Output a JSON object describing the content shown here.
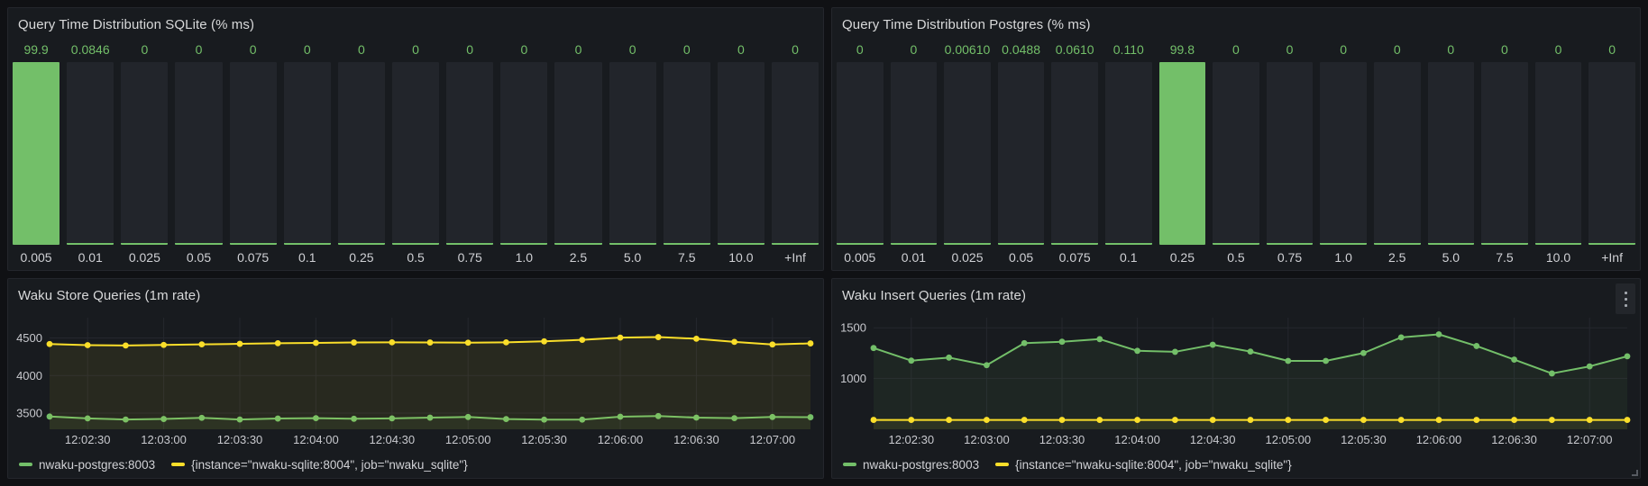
{
  "app": {
    "name": "grafana-dashboard"
  },
  "colors": {
    "green": "#73BF69",
    "yellow": "#FADE2A",
    "panel_bg": "#181B1F",
    "page_bg": "#101114",
    "grid": "#25272E",
    "axis_text": "#C8C9CE"
  },
  "chart_data": [
    {
      "id": "query-time-sqlite",
      "type": "bar",
      "title": "Query Time Distribution SQLite (% ms)",
      "categories": [
        "0.005",
        "0.01",
        "0.025",
        "0.05",
        "0.075",
        "0.1",
        "0.25",
        "0.5",
        "0.75",
        "1.0",
        "2.5",
        "5.0",
        "7.5",
        "10.0",
        "+Inf"
      ],
      "values": [
        99.9,
        0.0846,
        0,
        0,
        0,
        0,
        0,
        0,
        0,
        0,
        0,
        0,
        0,
        0,
        0
      ],
      "value_labels": [
        "99.9",
        "0.0846",
        "0",
        "0",
        "0",
        "0",
        "0",
        "0",
        "0",
        "0",
        "0",
        "0",
        "0",
        "0",
        "0"
      ],
      "unit": "%",
      "ylim": [
        0,
        100
      ],
      "legend_position": "none"
    },
    {
      "id": "query-time-postgres",
      "type": "bar",
      "title": "Query Time Distribution Postgres (% ms)",
      "categories": [
        "0.005",
        "0.01",
        "0.025",
        "0.05",
        "0.075",
        "0.1",
        "0.25",
        "0.5",
        "0.75",
        "1.0",
        "2.5",
        "5.0",
        "7.5",
        "10.0",
        "+Inf"
      ],
      "values": [
        0,
        0,
        0.0061,
        0.0488,
        0.061,
        0.11,
        99.8,
        0,
        0,
        0,
        0,
        0,
        0,
        0,
        0
      ],
      "value_labels": [
        "0",
        "0",
        "0.00610",
        "0.0488",
        "0.0610",
        "0.110",
        "99.8",
        "0",
        "0",
        "0",
        "0",
        "0",
        "0",
        "0",
        "0"
      ],
      "unit": "%",
      "ylim": [
        0,
        100
      ],
      "legend_position": "none"
    },
    {
      "id": "waku-store-queries",
      "type": "line",
      "title": "Waku Store Queries (1m rate)",
      "x_tick_labels": [
        "12:02:30",
        "12:03:00",
        "12:03:30",
        "12:04:00",
        "12:04:30",
        "12:05:00",
        "12:05:30",
        "12:06:00",
        "12:06:30",
        "12:07:00"
      ],
      "x_interval_seconds": 15,
      "y_ticks": [
        3500,
        4000,
        4500
      ],
      "y_range": [
        3285,
        4770
      ],
      "grid": true,
      "legend_position": "bottom",
      "series": [
        {
          "name": "nwaku-postgres:8003",
          "color": "green",
          "values": [
            3455,
            3430,
            3415,
            3422,
            3438,
            3415,
            3428,
            3433,
            3425,
            3430,
            3440,
            3449,
            3421,
            3414,
            3414,
            3453,
            3461,
            3441,
            3433,
            3449,
            3446
          ]
        },
        {
          "name": "{instance=\"nwaku-sqlite:8004\", job=\"nwaku_sqlite\"}",
          "color": "yellow",
          "values": [
            4420,
            4405,
            4400,
            4408,
            4415,
            4422,
            4430,
            4435,
            4440,
            4442,
            4440,
            4438,
            4442,
            4455,
            4475,
            4505,
            4512,
            4490,
            4448,
            4414,
            4428
          ]
        }
      ]
    },
    {
      "id": "waku-insert-queries",
      "type": "line",
      "title": "Waku Insert Queries (1m rate)",
      "x_tick_labels": [
        "12:02:30",
        "12:03:00",
        "12:03:30",
        "12:04:00",
        "12:04:30",
        "12:05:00",
        "12:05:30",
        "12:06:00",
        "12:06:30",
        "12:07:00"
      ],
      "x_interval_seconds": 15,
      "y_ticks": [
        1000,
        1500
      ],
      "y_range": [
        495,
        1600
      ],
      "grid": true,
      "legend_position": "bottom",
      "has_menu": true,
      "series": [
        {
          "name": "nwaku-postgres:8003",
          "color": "green",
          "values": [
            1300,
            1175,
            1205,
            1130,
            1348,
            1362,
            1388,
            1272,
            1262,
            1332,
            1265,
            1172,
            1172,
            1250,
            1405,
            1435,
            1320,
            1185,
            1048,
            1118,
            1218
          ]
        },
        {
          "name": "{instance=\"nwaku-sqlite:8004\", job=\"nwaku_sqlite\"}",
          "color": "yellow",
          "values": [
            588,
            588,
            588,
            588,
            588,
            588,
            588,
            588,
            588,
            588,
            588,
            588,
            588,
            588,
            588,
            588,
            588,
            588,
            588,
            588,
            588
          ]
        }
      ]
    }
  ]
}
